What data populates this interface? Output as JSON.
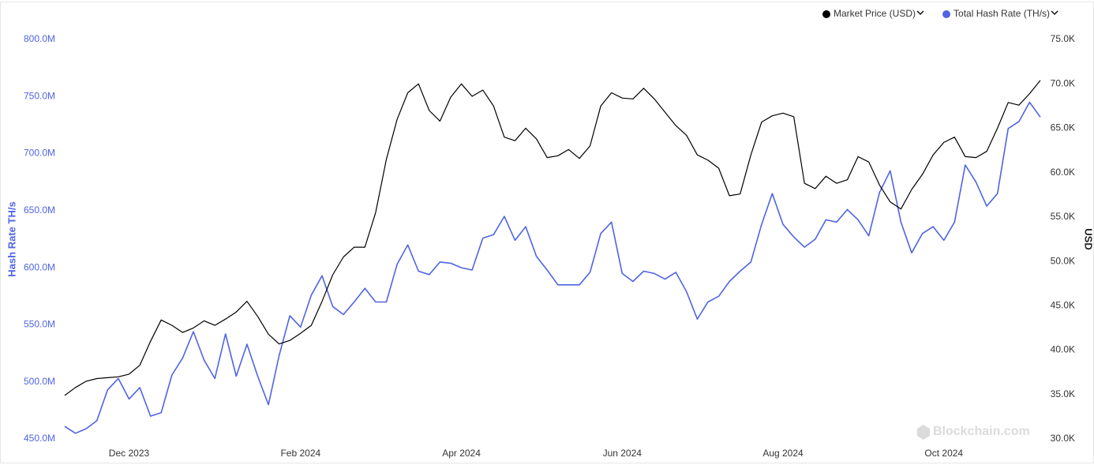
{
  "chart_data": {
    "type": "line",
    "y_axis_label": "Hash Rate TH/s",
    "y2_axis_label": "USD",
    "watermark": "Blockchain.com",
    "categories": [
      null,
      null,
      null,
      null,
      null,
      null,
      "Dec 2023",
      null,
      null,
      null,
      null,
      null,
      null,
      null,
      null,
      null,
      null,
      null,
      null,
      null,
      null,
      null,
      "Feb 2024",
      null,
      null,
      null,
      null,
      null,
      null,
      null,
      null,
      null,
      null,
      null,
      null,
      null,
      null,
      "Apr 2024",
      null,
      null,
      null,
      null,
      null,
      null,
      null,
      null,
      null,
      null,
      null,
      null,
      null,
      null,
      "Jun 2024",
      null,
      null,
      null,
      null,
      null,
      null,
      null,
      null,
      null,
      null,
      null,
      null,
      null,
      null,
      "Aug 2024",
      null,
      null,
      null,
      null,
      null,
      null,
      null,
      null,
      null,
      null,
      null,
      null,
      null,
      null,
      "Oct 2024",
      null,
      null,
      null,
      null,
      null,
      null,
      null,
      null,
      null
    ],
    "series": [
      {
        "name": "Market Price (USD)",
        "color": "#000000",
        "axis": "y2",
        "values": [
          34900,
          35800,
          36500,
          36800,
          36900,
          37000,
          37300,
          38300,
          41000,
          43400,
          42800,
          42000,
          42500,
          43300,
          42800,
          43500,
          44300,
          45500,
          43800,
          41800,
          40700,
          41100,
          41900,
          42800,
          45500,
          48500,
          50500,
          51600,
          51600,
          55500,
          61500,
          66000,
          69000,
          70000,
          67000,
          65800,
          68500,
          70000,
          68600,
          69300,
          67500,
          64000,
          63600,
          65000,
          63800,
          61700,
          61900,
          62600,
          61600,
          63000,
          67500,
          69000,
          68400,
          68300,
          69500,
          68300,
          66800,
          65300,
          64200,
          62000,
          61400,
          60500,
          57400,
          57600,
          62000,
          65700,
          66400,
          66700,
          66300,
          58800,
          58200,
          59600,
          58800,
          59200,
          61800,
          61200,
          58600,
          56700,
          55900,
          58100,
          59800,
          62000,
          63400,
          64000,
          61800,
          61700,
          62400,
          65000,
          67900,
          67600,
          68900,
          70400
        ]
      },
      {
        "name": "Total Hash Rate (TH/s)",
        "color": "#4f64e3",
        "axis": "y",
        "values": [
          461000000,
          455000000,
          459000000,
          466000000,
          493000000,
          503000000,
          485000000,
          495000000,
          470000000,
          473000000,
          506000000,
          521000000,
          544000000,
          519000000,
          503000000,
          542000000,
          505000000,
          533000000,
          505000000,
          480000000,
          523000000,
          558000000,
          548000000,
          576000000,
          593000000,
          566000000,
          559000000,
          570000000,
          582000000,
          570000000,
          570000000,
          603000000,
          620000000,
          597000000,
          594000000,
          605000000,
          604000000,
          600000000,
          598000000,
          626000000,
          629000000,
          645000000,
          624000000,
          636000000,
          610000000,
          598000000,
          585000000,
          585000000,
          585000000,
          596000000,
          630000000,
          640000000,
          595000000,
          588000000,
          597000000,
          595000000,
          590000000,
          596000000,
          579000000,
          555000000,
          570000000,
          575000000,
          588000000,
          597000000,
          605000000,
          638000000,
          665000000,
          638000000,
          627000000,
          618000000,
          625000000,
          642000000,
          640000000,
          651000000,
          642000000,
          628000000,
          666000000,
          685000000,
          640000000,
          613000000,
          630000000,
          636000000,
          624000000,
          640000000,
          690000000,
          675000000,
          654000000,
          665000000,
          722000000,
          728000000,
          745000000,
          732000000
        ]
      }
    ],
    "ylim": [
      450000000,
      800000000
    ],
    "yticks": [
      {
        "value": 450000000,
        "label": "450.0M"
      },
      {
        "value": 500000000,
        "label": "500.0M"
      },
      {
        "value": 550000000,
        "label": "550.0M"
      },
      {
        "value": 600000000,
        "label": "600.0M"
      },
      {
        "value": 650000000,
        "label": "650.0M"
      },
      {
        "value": 700000000,
        "label": "700.0M"
      },
      {
        "value": 750000000,
        "label": "750.0M"
      },
      {
        "value": 800000000,
        "label": "800.0M"
      }
    ],
    "y2lim": [
      30000,
      75000
    ],
    "y2ticks": [
      {
        "value": 30000,
        "label": "30.0K"
      },
      {
        "value": 35000,
        "label": "35.0K"
      },
      {
        "value": 40000,
        "label": "40.0K"
      },
      {
        "value": 45000,
        "label": "45.0K"
      },
      {
        "value": 50000,
        "label": "50.0K"
      },
      {
        "value": 55000,
        "label": "55.0K"
      },
      {
        "value": 60000,
        "label": "60.0K"
      },
      {
        "value": 65000,
        "label": "65.0K"
      },
      {
        "value": 70000,
        "label": "70.0K"
      },
      {
        "value": 75000,
        "label": "75.0K"
      }
    ],
    "grid": false,
    "legend": "top-right"
  }
}
